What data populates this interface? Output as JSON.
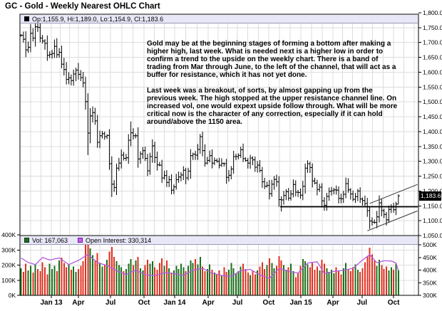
{
  "title": "GC - Gold - Weekly Nearest OHLC Chart",
  "main_panel": {
    "legend_text": "Op:1,155.9, Hi:1,189.0, Lo:1,154.9, Cl:1,183.6"
  },
  "annotation": {
    "p1": "Gold may be at the beginning stages of forming a bottom after making a higher high, last week.  What is needed next is a higher low in order to confirm a trend to the upside on the weekly chart.  There is a band of trading from Mar through June, to the left of the channel, that will act as a buffer for resistance, which it has not yet done.",
    "p2": "Last week was a breakout, of sorts, by almost gapping up from the previous week.  The high stopped at the upper resistance channel line. On increased vol, one would expext upside follow through.  What will be more critical now is the character of any correction, especially if it can hold around/above the 1150 area."
  },
  "volume_panel": {
    "vol_legend": "Vol: 167,063",
    "oi_legend": "Open Interest: 330,314"
  },
  "price_axis": {
    "ticks": [
      1800,
      1750,
      1700,
      1650,
      1600,
      1550,
      1500,
      1450,
      1400,
      1350,
      1300,
      1250,
      1200,
      1150,
      1100,
      1050
    ],
    "tick_labels": [
      "1,800.0",
      "1,750.0",
      "1,700.0",
      "1,650.0",
      "1,600.0",
      "1,550.0",
      "1,500.0",
      "1,450.0",
      "1,400.0",
      "1,350.0",
      "1,300.0",
      "1,250.0",
      "1,200.0",
      "1,150.0",
      "1,100.0",
      "1,050.0"
    ],
    "last_price": 1183.6,
    "last_price_label": "1,183.6"
  },
  "volume_axis": {
    "left_ticks": [
      400,
      300,
      200,
      100,
      0
    ],
    "left_labels": [
      "400K",
      "300K",
      "200K",
      "100K",
      "0K"
    ],
    "right_ticks": [
      500,
      450,
      400,
      350,
      300
    ],
    "right_labels": [
      "500K",
      "450K",
      "400K",
      "350K",
      "300K"
    ]
  },
  "x_axis": {
    "labels": [
      {
        "text": "Jan 13",
        "week": 12.7
      },
      {
        "text": "Apr",
        "week": 24.0
      },
      {
        "text": "Jul",
        "week": 37.5
      },
      {
        "text": "Oct",
        "week": 51.5
      },
      {
        "text": "Jan 14",
        "week": 64.3
      },
      {
        "text": "Apr",
        "week": 78.4
      },
      {
        "text": "Jul",
        "week": 90.6
      },
      {
        "text": "Oct",
        "week": 103.7
      },
      {
        "text": "Jan 15",
        "week": 117.2
      },
      {
        "text": "Apr",
        "week": 130.6
      },
      {
        "text": "Jul",
        "week": 142.8
      },
      {
        "text": "Oct",
        "week": 156.0
      }
    ]
  },
  "colors": {
    "bars": "#000000",
    "up_volume": "#1d6f1d",
    "down_volume": "#e03020",
    "open_interest": "#b35be0",
    "legend_bg": "#e7e7f8",
    "grid": "#dcdcdc",
    "border": "#000000",
    "last_price_bg": "#000000",
    "last_price_fg": "#ffffff"
  },
  "chart_data": {
    "type": "ohlc+volume",
    "frequency": "weekly",
    "x_range": "Oct 2012 - Oct 2015",
    "price": {
      "type": "ohlc",
      "ylim": [
        1050,
        1800
      ],
      "weekly_closes": [
        1724,
        1711,
        1675,
        1684,
        1731,
        1715,
        1753,
        1751,
        1715,
        1705,
        1697,
        1657,
        1660,
        1663,
        1687,
        1659,
        1667,
        1627,
        1609,
        1576,
        1581,
        1572,
        1594,
        1607,
        1593,
        1582,
        1564,
        1501,
        1395,
        1453,
        1464,
        1436,
        1364,
        1386,
        1393,
        1383,
        1387,
        1292,
        1223,
        1212,
        1277,
        1294,
        1321,
        1310,
        1312,
        1371,
        1396,
        1386,
        1386,
        1308,
        1325,
        1336,
        1310,
        1268,
        1316,
        1352,
        1313,
        1288,
        1287,
        1244,
        1252,
        1229,
        1238,
        1203,
        1214,
        1238,
        1247,
        1254,
        1270,
        1244,
        1267,
        1319,
        1324,
        1321,
        1340,
        1383,
        1336,
        1294,
        1303,
        1319,
        1294,
        1303,
        1300,
        1287,
        1293,
        1292,
        1246,
        1253,
        1274,
        1316,
        1316,
        1320,
        1339,
        1309,
        1303,
        1294,
        1311,
        1305,
        1280,
        1287,
        1269,
        1231,
        1216,
        1219,
        1191,
        1223,
        1239,
        1231,
        1171,
        1170,
        1185,
        1198,
        1176,
        1190,
        1222,
        1196,
        1195,
        1186,
        1216,
        1277,
        1292,
        1279,
        1234,
        1227,
        1205,
        1213,
        1167,
        1152,
        1182,
        1199,
        1201,
        1204,
        1203,
        1175,
        1174,
        1189,
        1225,
        1204,
        1190,
        1172,
        1181,
        1200,
        1173,
        1168,
        1158,
        1134,
        1099,
        1095,
        1094,
        1113,
        1160,
        1134,
        1121,
        1103,
        1138,
        1146,
        1137,
        1156,
        1183.6
      ],
      "high_overrides": {
        "46": 1434,
        "75": 1392
      },
      "low_overrides": {
        "28": 1321,
        "38": 1180,
        "109": 1131,
        "146": 1072
      },
      "last_bar": {
        "open": 1155.9,
        "high": 1189.0,
        "low": 1154.9,
        "close": 1183.6
      }
    },
    "volume": {
      "type": "bar",
      "unit": "K contracts",
      "ylim_k": [
        0,
        400
      ],
      "last_value": 167063,
      "values_k": [
        180,
        155,
        210,
        165,
        195,
        150,
        205,
        175,
        160,
        220,
        185,
        140,
        210,
        175,
        195,
        160,
        230,
        250,
        215,
        185,
        205,
        170,
        190,
        155,
        175,
        195,
        225,
        340,
        470,
        310,
        265,
        230,
        280,
        215,
        190,
        205,
        235,
        290,
        320,
        255,
        225,
        200,
        185,
        160,
        175,
        210,
        240,
        200,
        230,
        255,
        180,
        165,
        200,
        235,
        210,
        225,
        185,
        170,
        215,
        245,
        195,
        230,
        180,
        150,
        165,
        195,
        175,
        210,
        185,
        160,
        195,
        230,
        215,
        240,
        205,
        255,
        190,
        160,
        175,
        205,
        170,
        150,
        140,
        165,
        135,
        185,
        155,
        170,
        215,
        180,
        145,
        160,
        190,
        210,
        175,
        150,
        135,
        160,
        140,
        165,
        190,
        220,
        175,
        200,
        245,
        215,
        180,
        195,
        260,
        230,
        200,
        170,
        185,
        210,
        160,
        120,
        150,
        195,
        240,
        225,
        205,
        185,
        215,
        170,
        190,
        165,
        235,
        210,
        180,
        155,
        170,
        145,
        185,
        165,
        140,
        180,
        215,
        175,
        160,
        185,
        205,
        170,
        155,
        180,
        220,
        260,
        315,
        270,
        230,
        195,
        235,
        200,
        175,
        190,
        165,
        185,
        170,
        210,
        167
      ]
    },
    "open_interest": {
      "type": "line",
      "unit": "K contracts",
      "ylim_k": [
        300,
        535
      ],
      "last_value": 330314,
      "points": [
        [
          0,
          448
        ],
        [
          3,
          430
        ],
        [
          6,
          422
        ],
        [
          9,
          450
        ],
        [
          12,
          440
        ],
        [
          16,
          448
        ],
        [
          20,
          422
        ],
        [
          24,
          438
        ],
        [
          28,
          462
        ],
        [
          32,
          430
        ],
        [
          36,
          418
        ],
        [
          40,
          398
        ],
        [
          44,
          382
        ],
        [
          48,
          400
        ],
        [
          52,
          381
        ],
        [
          56,
          378
        ],
        [
          60,
          390
        ],
        [
          64,
          386
        ],
        [
          68,
          379
        ],
        [
          72,
          400
        ],
        [
          76,
          407
        ],
        [
          80,
          388
        ],
        [
          84,
          379
        ],
        [
          88,
          375
        ],
        [
          92,
          398
        ],
        [
          96,
          403
        ],
        [
          100,
          381
        ],
        [
          104,
          367
        ],
        [
          108,
          406
        ],
        [
          112,
          395
        ],
        [
          116,
          388
        ],
        [
          120,
          428
        ],
        [
          124,
          433
        ],
        [
          127,
          386
        ],
        [
          131,
          395
        ],
        [
          135,
          399
        ],
        [
          139,
          407
        ],
        [
          143,
          440
        ],
        [
          146,
          461
        ],
        [
          149,
          429
        ],
        [
          152,
          437
        ],
        [
          155,
          436
        ],
        [
          157,
          428
        ],
        [
          158,
          398
        ]
      ]
    },
    "overlays": {
      "support_line": {
        "from_week": 108.5,
        "to_week": 166.2,
        "price": 1147
      },
      "channel_lower": {
        "from": [
          145,
          1066
        ],
        "to": [
          166,
          1133
        ]
      },
      "channel_upper": {
        "from": [
          146,
          1158
        ],
        "to": [
          166,
          1222
        ]
      }
    }
  }
}
